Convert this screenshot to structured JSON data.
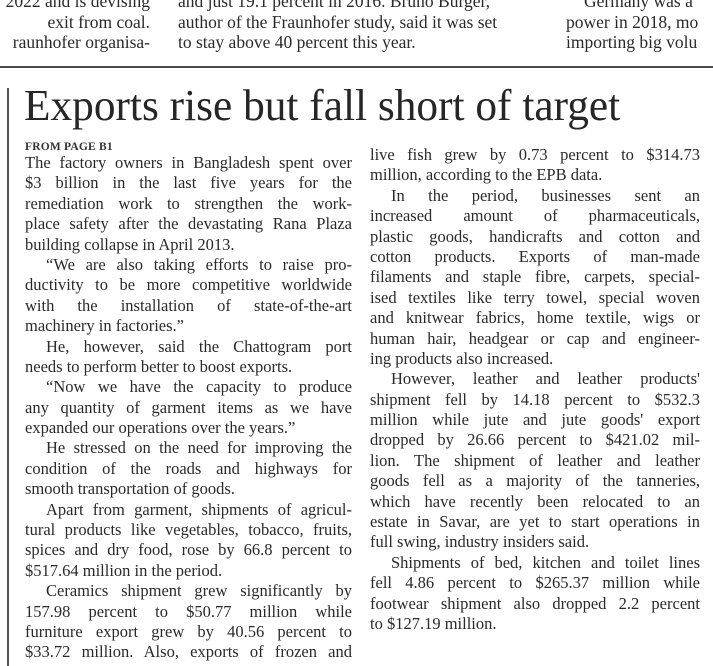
{
  "previous_article": {
    "columns": [
      [
        "2022 and is devising",
        "exit from coal.",
        "raunhofer organisa-"
      ],
      [
        "and just 19.1 percent in 2016. Bruno Burger,",
        "author of the Fraunhofer study, said it was set",
        "to stay above 40 percent this year."
      ],
      [
        "Germany was a",
        "power in 2018, mo",
        "importing big volu"
      ]
    ]
  },
  "article": {
    "headline": "Exports rise but fall short of target",
    "kicker": "FROM PAGE B1",
    "columns": [
      [
        {
          "lines": [
            "The factory owners in Bangladesh spent over",
            "$3 billion in the last five years for the",
            "remediation work to strengthen the work-",
            "place safety after the devastating Rana Plaza",
            "building collapse in April 2013."
          ]
        },
        {
          "lines": [
            "“We are also taking efforts to raise pro-",
            "ductivity to be more competitive worldwide",
            "with the installation of state-of-the-art",
            "machinery in factories.”"
          ]
        },
        {
          "lines": [
            "He, however, said the Chattogram port",
            "needs to perform better to boost exports."
          ]
        },
        {
          "lines": [
            "“Now we have the capacity to produce",
            "any quantity of garment items as we have",
            "expanded our operations over the years.”"
          ]
        },
        {
          "lines": [
            "He stressed on the need for improving the",
            "condition of the roads and highways for",
            "smooth transportation of goods."
          ]
        },
        {
          "lines": [
            "Apart from garment, shipments of agricul-",
            "tural products like vegetables, tobacco, fruits,",
            "spices and dry food, rose by 66.8 percent to",
            "$517.64 million in the period."
          ]
        },
        {
          "lines": [
            "Ceramics shipment grew significantly by",
            "157.98 percent to $50.77 million while",
            "furniture export grew by 40.56 percent to",
            "$33.72 million. Also, exports of frozen and"
          ],
          "continues": true
        }
      ],
      [
        {
          "lines": [
            "live fish grew by 0.73 percent to $314.73",
            "million, according to the EPB data."
          ],
          "continued": true
        },
        {
          "lines": [
            "In the period, businesses sent an",
            "increased amount of pharmaceuticals,",
            "plastic goods, handicrafts and cotton and",
            "cotton products. Exports of man-made",
            "filaments and staple fibre, carpets, special-",
            "ised textiles like terry towel, special woven",
            "and knitwear fabrics, home textile, wigs or",
            "human hair, headgear or cap and engineer-",
            "ing products also increased."
          ]
        },
        {
          "lines": [
            "However, leather and leather products'",
            "shipment fell by 14.18 percent to $532.3",
            "million while jute and jute goods' export",
            "dropped by 26.66 percent to $421.02 mil-",
            "lion. The shipment of leather and leather",
            "goods fell as a majority of the tanneries,",
            "which have recently been relocated to an",
            "estate in Savar, are yet to start operations in",
            "full swing, industry insiders said."
          ]
        },
        {
          "lines": [
            "Shipments of bed, kitchen and toilet lines",
            "fell 4.86 percent to $265.37 million while",
            "footwear shipment also dropped 2.2 percent",
            "to $127.19 million."
          ]
        }
      ]
    ]
  }
}
